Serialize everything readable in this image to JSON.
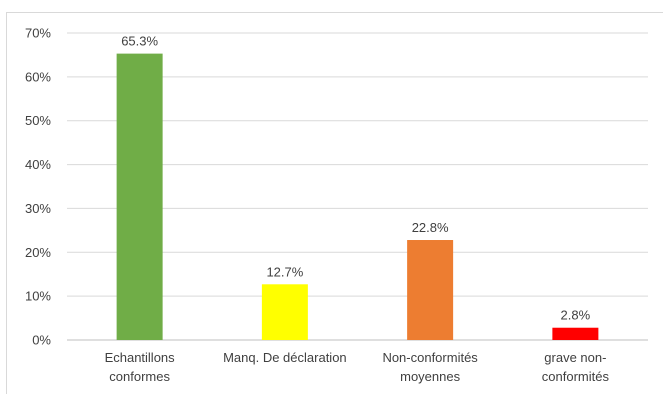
{
  "chart_data": {
    "type": "bar",
    "categories": [
      [
        "Echantillons",
        "conformes"
      ],
      [
        "Manq. De déclaration"
      ],
      [
        "Non-conformités",
        "moyennes"
      ],
      [
        "grave non-",
        "conformités"
      ]
    ],
    "values": [
      65.3,
      12.7,
      22.8,
      2.8
    ],
    "data_labels": [
      "65.3%",
      "12.7%",
      "22.8%",
      "2.8%"
    ],
    "colors": [
      "#70ad47",
      "#ffff00",
      "#ed7d31",
      "#ff0000"
    ],
    "y_ticks": [
      0,
      10,
      20,
      30,
      40,
      50,
      60,
      70
    ],
    "y_tick_labels": [
      "0%",
      "10%",
      "20%",
      "30%",
      "40%",
      "50%",
      "60%",
      "70%"
    ],
    "ylim": [
      0,
      70
    ],
    "grid": true,
    "legend": "none",
    "title": "",
    "xlabel": "",
    "ylabel": ""
  }
}
